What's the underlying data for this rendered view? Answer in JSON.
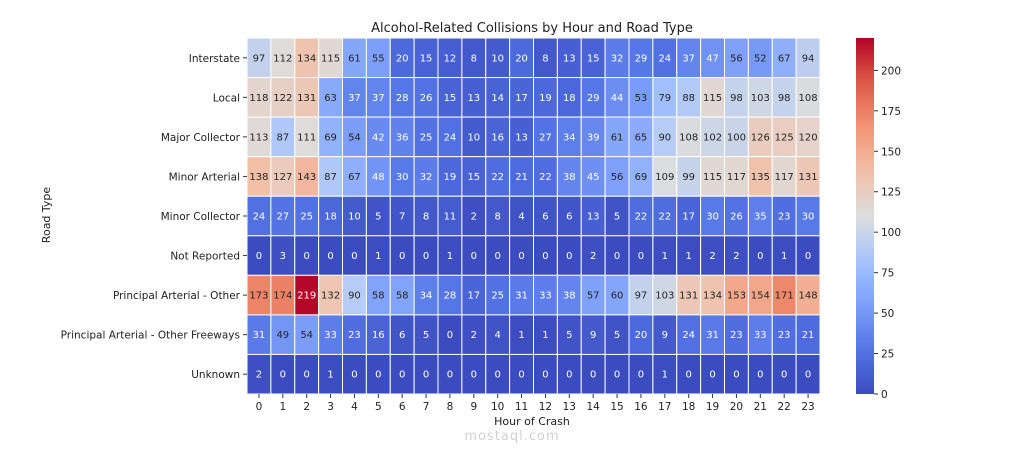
{
  "chart_data": {
    "type": "heatmap",
    "title": "Alcohol-Related Collisions by Hour and Road Type",
    "xlabel": "Hour of Crash",
    "ylabel": "Road Type",
    "x": [
      "0",
      "1",
      "2",
      "3",
      "4",
      "5",
      "6",
      "7",
      "8",
      "9",
      "10",
      "11",
      "12",
      "13",
      "14",
      "15",
      "16",
      "17",
      "18",
      "19",
      "20",
      "21",
      "22",
      "23"
    ],
    "y": [
      "Interstate",
      "Local",
      "Major Collector",
      "Minor Arterial",
      "Minor Collector",
      "Not Reported",
      "Principal Arterial - Other",
      "Principal Arterial - Other Freeways",
      "Unknown"
    ],
    "values": [
      [
        97,
        112,
        134,
        115,
        61,
        55,
        20,
        15,
        12,
        8,
        10,
        20,
        8,
        13,
        15,
        32,
        29,
        24,
        37,
        47,
        56,
        52,
        67,
        94
      ],
      [
        118,
        122,
        131,
        63,
        37,
        37,
        28,
        26,
        15,
        13,
        14,
        17,
        19,
        18,
        29,
        44,
        53,
        79,
        88,
        115,
        98,
        103,
        98,
        108
      ],
      [
        113,
        87,
        111,
        69,
        54,
        42,
        36,
        25,
        24,
        10,
        16,
        13,
        27,
        34,
        39,
        61,
        65,
        90,
        108,
        102,
        100,
        126,
        125,
        120
      ],
      [
        138,
        127,
        143,
        87,
        67,
        48,
        30,
        32,
        19,
        15,
        22,
        21,
        22,
        38,
        45,
        56,
        69,
        109,
        99,
        115,
        117,
        135,
        117,
        131
      ],
      [
        24,
        27,
        25,
        18,
        10,
        5,
        7,
        8,
        11,
        2,
        8,
        4,
        6,
        6,
        13,
        5,
        22,
        22,
        17,
        30,
        26,
        35,
        23,
        30
      ],
      [
        0,
        3,
        0,
        0,
        0,
        1,
        0,
        0,
        1,
        0,
        0,
        0,
        0,
        0,
        2,
        0,
        0,
        1,
        1,
        2,
        2,
        0,
        1,
        0
      ],
      [
        173,
        174,
        219,
        132,
        90,
        58,
        58,
        34,
        28,
        17,
        25,
        31,
        33,
        38,
        57,
        60,
        97,
        103,
        131,
        134,
        153,
        154,
        171,
        148
      ],
      [
        31,
        49,
        54,
        33,
        23,
        16,
        6,
        5,
        0,
        2,
        4,
        1,
        1,
        5,
        9,
        5,
        20,
        9,
        24,
        31,
        23,
        33,
        23,
        21
      ],
      [
        2,
        0,
        0,
        1,
        0,
        0,
        0,
        0,
        0,
        0,
        0,
        0,
        0,
        0,
        0,
        0,
        0,
        1,
        0,
        0,
        0,
        0,
        0,
        0
      ]
    ],
    "colorbar": {
      "colormap": "coolwarm",
      "range": [
        0,
        220
      ],
      "ticks": [
        0,
        25,
        50,
        75,
        100,
        125,
        150,
        175,
        200
      ]
    },
    "grid": false
  },
  "watermark": {
    "text": "mostaql.com"
  }
}
